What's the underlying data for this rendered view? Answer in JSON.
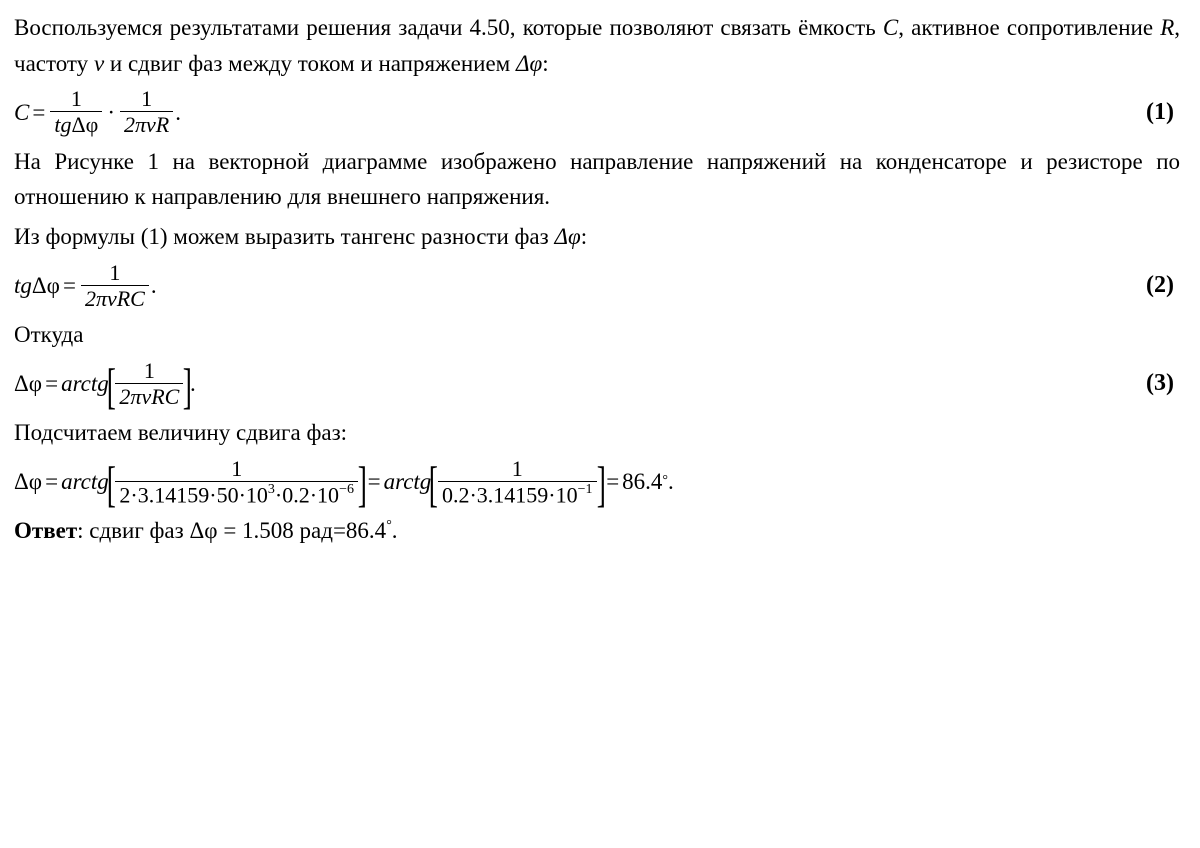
{
  "p1_a": "Воспользуемся результатами решения задачи 4.50, которые позволяют связать ёмкость ",
  "sym_C": "C",
  "p1_b": ", активное сопротивление ",
  "sym_R": "R",
  "p1_c": ", частоту ",
  "sym_nu": "ν",
  "p1_d": " и сдвиг фаз между током и напряжением ",
  "sym_dphi": "Δφ",
  "p1_e": ":",
  "eq1": {
    "lhs": "C",
    "eq": "=",
    "f1_num": "1",
    "f1_den_a": "tg",
    "f1_den_b": "Δφ",
    "dot": "·",
    "f2_num": "1",
    "f2_den": "2πνR",
    "period": ".",
    "num": "(1)"
  },
  "p2": "На Рисунке 1 на векторной диаграмме изображено направление напряжений на конденсаторе и резисторе по отношению к направлению для внешнего напряжения.",
  "p3_a": "Из формулы (1) можем выразить тангенс разности фаз ",
  "p3_b": ":",
  "eq2": {
    "lhs_a": "tg",
    "lhs_b": "Δφ",
    "eq": "=",
    "num_t": "1",
    "den": "2πνRC",
    "period": ".",
    "num": "(2)"
  },
  "p4": "Откуда",
  "eq3": {
    "lhs": "Δφ",
    "eq": "=",
    "arctg": "arctg",
    "lb": "[",
    "rb": "]",
    "num_t": "1",
    "den": "2πνRC",
    "period": ".",
    "num": "(3)"
  },
  "p5": "Подсчитаем величину сдвига фаз:",
  "eq4": {
    "lhs": "Δφ",
    "eq": "=",
    "arctg": "arctg",
    "lb": "[",
    "rb": "]",
    "num_t": "1",
    "den1_a": "2·3.14159·50·10",
    "den1_exp1": "3",
    "den1_b": "·0.2·10",
    "den1_exp2": "−6",
    "eq2": "=",
    "num_t2": "1",
    "den2_a": "0.2·3.14159·10",
    "den2_exp": "−1",
    "eq3": "=",
    "result": "86.4",
    "deg": "°",
    "period": "."
  },
  "ans_label": "Ответ",
  "ans_a": ": сдвиг фаз ",
  "ans_b": "Δφ",
  "ans_c": " = 1.508",
  "ans_d": " рад=86.4",
  "ans_deg": "°",
  "ans_period": "."
}
